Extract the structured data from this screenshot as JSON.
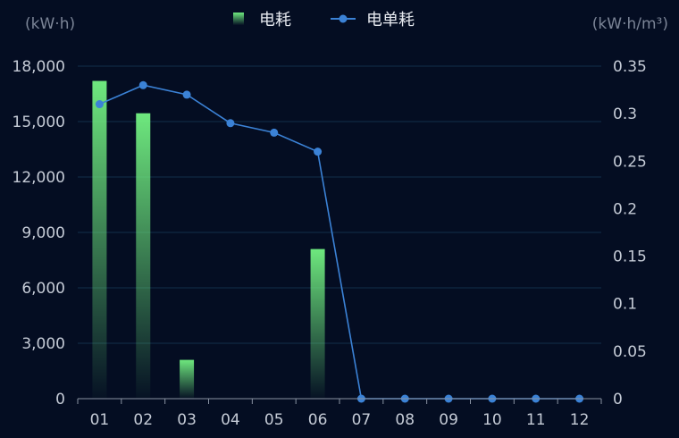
{
  "colors": {
    "background": "#040d22",
    "bar_top": "#6ee87e",
    "bar_bottom": "#0b2a2a",
    "line": "#3b82d6",
    "grid": "#12304a",
    "axis_text": "#c5cbd6",
    "unit_text": "#7c8597"
  },
  "chart_data": {
    "type": "bar+line",
    "categories": [
      "01",
      "02",
      "03",
      "04",
      "05",
      "06",
      "07",
      "08",
      "09",
      "10",
      "11",
      "12"
    ],
    "series": [
      {
        "name": "电耗",
        "type": "bar",
        "axis": "left",
        "values": [
          17200,
          15450,
          2100,
          0,
          0,
          8100,
          0,
          0,
          0,
          0,
          0,
          0
        ]
      },
      {
        "name": "电单耗",
        "type": "line",
        "axis": "right",
        "values": [
          0.31,
          0.33,
          0.32,
          0.29,
          0.28,
          0.26,
          0,
          0,
          0,
          0,
          0,
          0
        ]
      }
    ],
    "left_axis": {
      "unit": "(kW·h)",
      "ylim": [
        0,
        18000
      ],
      "ticks": [
        "0",
        "3,000",
        "6,000",
        "9,000",
        "12,000",
        "15,000",
        "18,000"
      ]
    },
    "right_axis": {
      "unit": "(kW·h/m³)",
      "ylim": [
        0,
        0.35
      ],
      "ticks": [
        "0",
        "0.05",
        "0.1",
        "0.15",
        "0.2",
        "0.25",
        "0.3",
        "0.35"
      ]
    },
    "grid": true,
    "legend": "top-center"
  }
}
